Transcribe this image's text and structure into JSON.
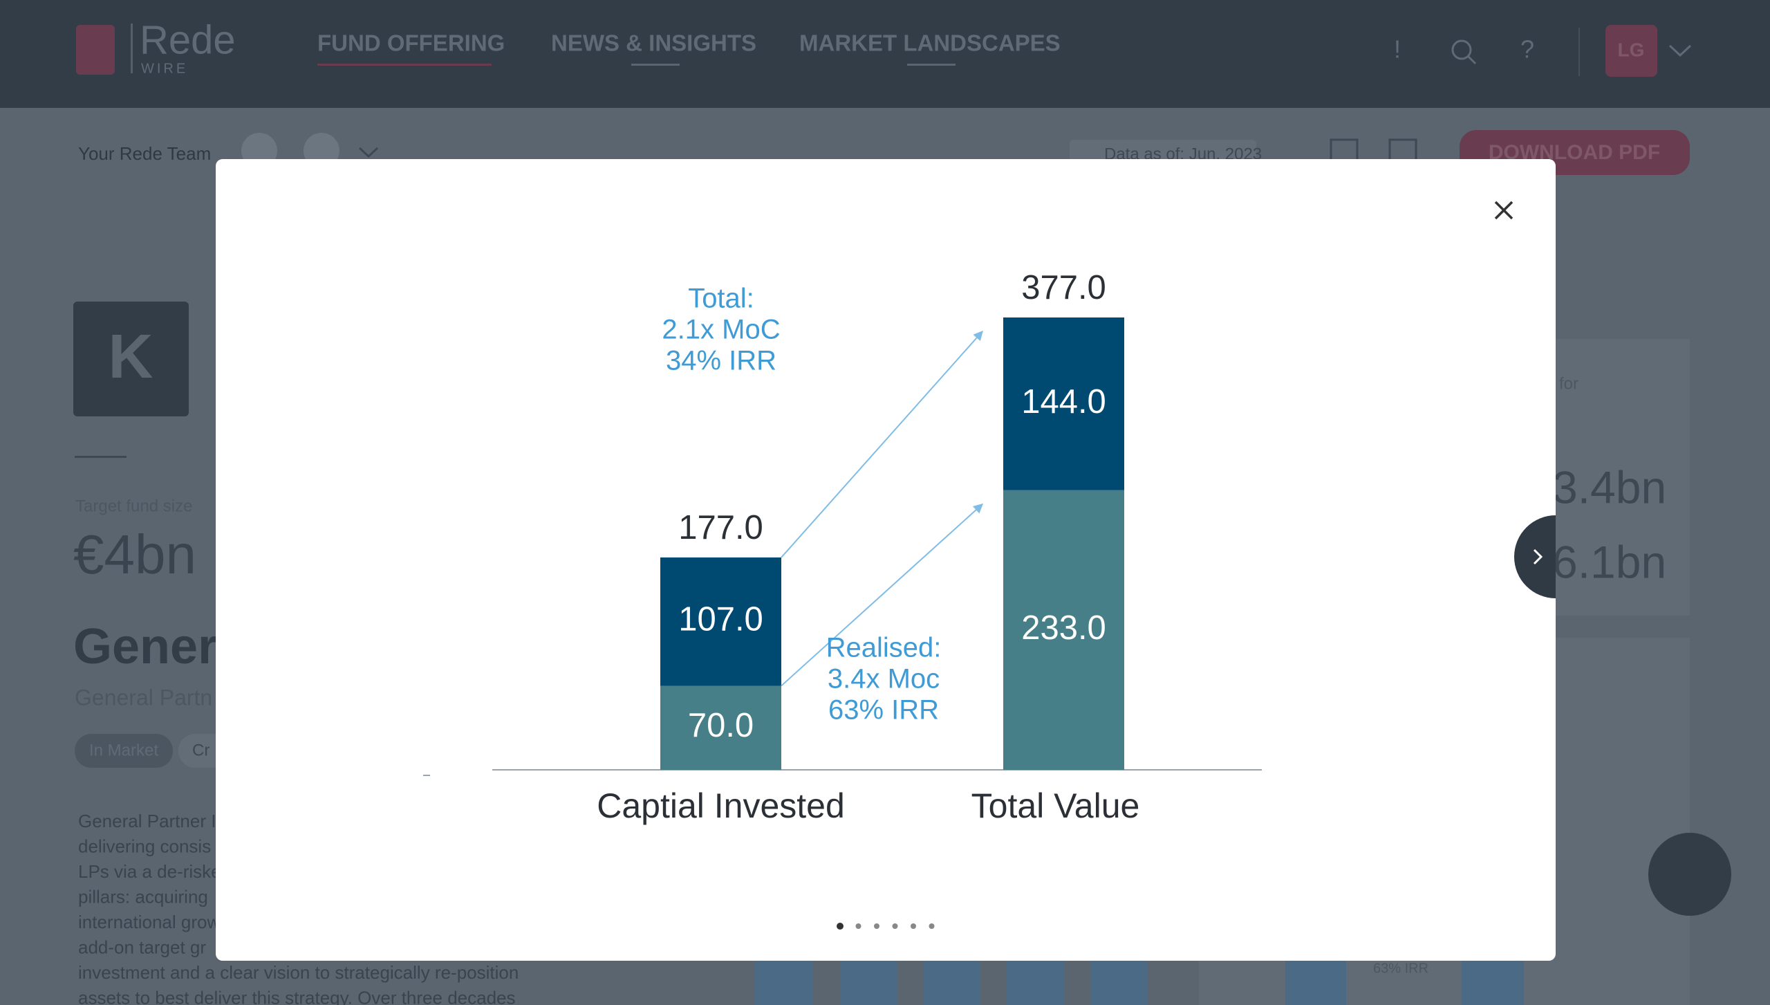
{
  "header": {
    "logo": "Rede",
    "logo_sub": "WIRE",
    "nav": [
      "FUND OFFERING",
      "NEWS & INSIGHTS",
      "MARKET LANDSCAPES"
    ],
    "icons": [
      "!",
      "?"
    ],
    "user": "LG"
  },
  "toolbar": {
    "team_label": "Your Rede Team",
    "data_as_of": "Data as of: Jun, 2023",
    "download": "DOWNLOAD PDF"
  },
  "fund": {
    "logo_letter": "K",
    "target_label": "Target fund size",
    "target": "€4bn",
    "name": "Gener",
    "subtitle": "General Partn",
    "status": "In Market",
    "status2": "Cr",
    "description": [
      "General Partner I",
      "delivering consis",
      "LPs via a de-riske",
      "pillars: acquiring",
      "international grow",
      "add-on target gr",
      "investment and a clear vision to strategically re-position",
      "assets to best deliver this strategy. Over three decades"
    ]
  },
  "side": {
    "note": "for",
    "values": [
      "3.4bn",
      "6.1bn"
    ],
    "chart_note": "63% IRR"
  },
  "modal": {
    "chart": {
      "type": "bar",
      "stacked": true,
      "categories": [
        "Captial Invested",
        "Total Value"
      ],
      "series": [
        {
          "color": "#467f88",
          "values": [
            70,
            233
          ],
          "value_labels": [
            "70.0",
            "233.0"
          ]
        },
        {
          "color": "#004a72",
          "values": [
            107,
            144
          ],
          "value_labels": [
            "107.0",
            "144.0"
          ]
        }
      ],
      "totals": [
        177,
        377
      ],
      "total_labels": [
        "177.0",
        "377.0"
      ],
      "annotations": [
        {
          "lines": [
            "Total:",
            "2.1x MoC",
            "34% IRR"
          ],
          "color": "#3e9bd5"
        },
        {
          "lines": [
            "Realised:",
            "3.4x Moc",
            "63% IRR"
          ],
          "color": "#3e9bd5"
        }
      ]
    },
    "pages": 6,
    "active_page": 0
  }
}
